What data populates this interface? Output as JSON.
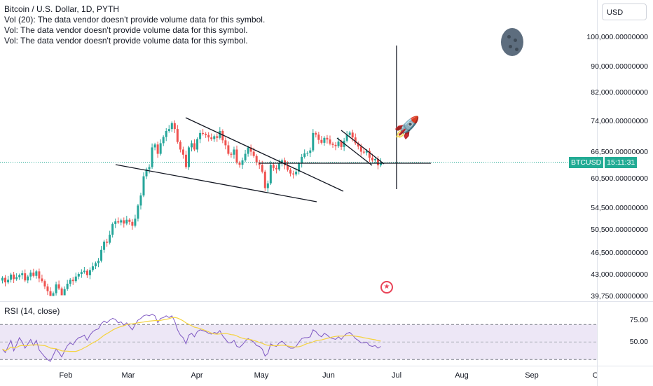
{
  "legend": {
    "title": "Bitcoin / U.S. Dollar, 1D, PYTH",
    "vol20": "Vol (20): The data vendor doesn't provide volume data for this symbol.",
    "vol1": "Vol: The data vendor doesn't provide volume data for this symbol.",
    "vol2": "Vol: The data vendor doesn't provide volume data for this symbol."
  },
  "rsi_legend": "RSI (14, close)",
  "currency": "USD",
  "price_labels": [
    "100,000.00000000",
    "90,000.00000000",
    "82,000.00000000",
    "74,000.00000000",
    "66,500.00000000",
    "60,500.00000000",
    "54,500.00000000",
    "50,500.00000000",
    "46,500.00000000",
    "43,000.00000000",
    "39,750.00000000"
  ],
  "rsi_labels": [
    "75.00",
    "50.00"
  ],
  "time_labels": [
    "Feb",
    "Mar",
    "Apr",
    "May",
    "Jun",
    "Jul",
    "Aug",
    "Sep",
    "O"
  ],
  "current_price": {
    "symbol": "BTCUSD",
    "countdown": "15:11:31"
  },
  "icons": {
    "moon": "moon-icon",
    "rocket": "rocket-emoji",
    "flag": "us-flag-event-icon"
  },
  "colors": {
    "up": "#26a69a",
    "down": "#ef5350",
    "rsi_line": "#7e57c2",
    "rsi_ma": "#f5d33f",
    "rsi_band": "#ede7f6",
    "price_line": "#22ab94"
  },
  "chart_data": {
    "type": "candlestick",
    "title": "Bitcoin / U.S. Dollar, 1D, PYTH",
    "y_scale": "log",
    "ylim": [
      39000,
      105000
    ],
    "x_months": [
      "Feb",
      "Mar",
      "Apr",
      "May",
      "Jun",
      "Jul",
      "Aug",
      "Sep"
    ],
    "close_series": [
      42500,
      41800,
      42200,
      43000,
      42300,
      42600,
      42900,
      43200,
      42100,
      42700,
      43300,
      42800,
      43500,
      42400,
      42000,
      41200,
      40500,
      39800,
      40200,
      41500,
      40900,
      39900,
      40800,
      41600,
      42200,
      42000,
      42700,
      43100,
      43400,
      43600,
      42900,
      43700,
      44300,
      44800,
      45200,
      47000,
      48400,
      48200,
      49600,
      51500,
      52000,
      51800,
      52200,
      51600,
      52300,
      51900,
      51200,
      52500,
      55000,
      57000,
      61000,
      62500,
      63000,
      67500,
      68200,
      66000,
      68500,
      70000,
      71500,
      72000,
      73500,
      72000,
      68800,
      67000,
      65800,
      63000,
      67500,
      68500,
      67000,
      69500,
      71000,
      70800,
      70500,
      69900,
      69500,
      70200,
      69800,
      71500,
      69200,
      68000,
      66000,
      65800,
      67000,
      64000,
      63500,
      64500,
      66000,
      67500,
      66500,
      65500,
      64000,
      63500,
      62000,
      58500,
      59500,
      63500,
      62800,
      62500,
      63800,
      64500,
      63400,
      62400,
      61600,
      61400,
      62000,
      63800,
      65300,
      66100,
      66200,
      66800,
      71000,
      70600,
      69300,
      68600,
      69800,
      69400,
      68400,
      68100,
      67800,
      68900,
      67600,
      69100,
      70500,
      71100,
      69900,
      68500,
      67700,
      66500,
      66300,
      66700,
      65100,
      64500,
      64800,
      63400,
      64100
    ],
    "rsi_series": [
      42,
      38,
      45,
      52,
      40,
      47,
      55,
      50,
      43,
      48,
      53,
      46,
      52,
      41,
      37,
      33,
      30,
      28,
      35,
      42,
      38,
      33,
      40,
      46,
      49,
      47,
      52,
      55,
      56,
      58,
      52,
      58,
      62,
      64,
      65,
      71,
      74,
      72,
      75,
      77,
      76,
      72,
      73,
      69,
      72,
      68,
      64,
      70,
      75,
      77,
      80,
      81,
      80,
      82,
      80,
      72,
      77,
      78,
      80,
      78,
      80,
      74,
      64,
      58,
      55,
      48,
      58,
      60,
      56,
      62,
      64,
      63,
      62,
      60,
      59,
      61,
      60,
      63,
      57,
      53,
      49,
      49,
      52,
      45,
      44,
      47,
      51,
      54,
      52,
      50,
      46,
      45,
      42,
      34,
      37,
      48,
      46,
      45,
      49,
      51,
      48,
      45,
      43,
      43,
      45,
      50,
      54,
      55,
      55,
      56,
      64,
      62,
      58,
      56,
      60,
      58,
      55,
      54,
      53,
      56,
      53,
      57,
      60,
      61,
      58,
      54,
      52,
      49,
      49,
      50,
      46,
      45,
      46,
      43,
      45
    ],
    "rsi_levels": [
      70,
      50,
      30
    ],
    "current_price_line": 64100
  }
}
